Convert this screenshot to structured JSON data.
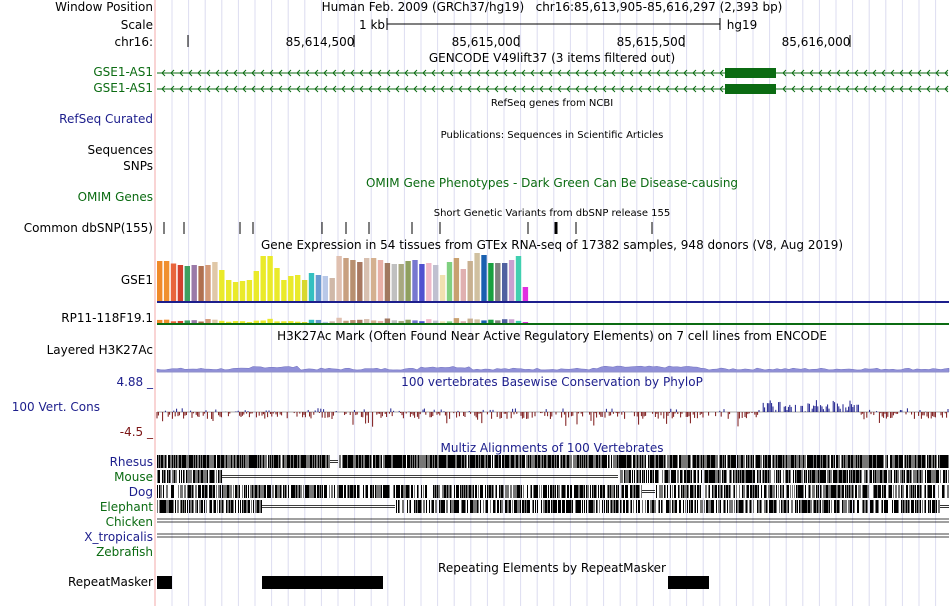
{
  "header": {
    "window_position_label": "Window Position",
    "scale_label": "Scale",
    "chrom_label": "chr16:",
    "assembly": "Human Feb. 2009 (GRCh37/hg19)",
    "position": "chr16:85,613,905-85,616,297 (2,393 bp)",
    "scale_text": "1 kb",
    "assembly_short": "hg19",
    "ruler_ticks": [
      "85,614,500",
      "85,615,000",
      "85,615,500",
      "85,616,000"
    ]
  },
  "colors": {
    "label_blue": "#1c1e8c",
    "label_green": "#0b6b12",
    "gene_green": "#0b6b12",
    "guide_line": "#d7d7f0",
    "left_border": "#f3a8a8",
    "phylop_pos": "#1c1e8c",
    "phylop_neg": "#7a1414"
  },
  "tracks": {
    "gencode": {
      "title": "GENCODE V49lift37 (3 items filtered out)",
      "items": [
        {
          "label": "GSE1-AS1",
          "strand": "minus"
        },
        {
          "label": "GSE1-AS1",
          "strand": "minus"
        }
      ]
    },
    "refseq": {
      "title": "RefSeq genes from NCBI",
      "label": "RefSeq Curated"
    },
    "publications": {
      "title": "Publications: Sequences in Scientific Articles",
      "label_line1": "Sequences",
      "label_line2": "SNPs"
    },
    "omim": {
      "title": "OMIM Gene Phenotypes - Dark Green Can Be Disease-causing",
      "label": "OMIM Genes"
    },
    "dbsnp": {
      "title": "Short Genetic Variants from dbSNP release 155",
      "label": "Common dbSNP(155)"
    },
    "gtex": {
      "title": "Gene Expression in 54 tissues from GTEx RNA-seq of 17382 samples, 948 donors (V8, Aug 2019)",
      "genes": [
        "GSE1",
        "RP11-118F19.1"
      ],
      "tissue_values": [
        0.8,
        0.8,
        0.75,
        0.72,
        0.7,
        0.72,
        0.7,
        0.72,
        0.78,
        0.62,
        0.42,
        0.38,
        0.4,
        0.42,
        0.6,
        0.9,
        0.9,
        0.66,
        0.42,
        0.5,
        0.52,
        0.42,
        0.56,
        0.52,
        0.5,
        0.46,
        0.9,
        0.86,
        0.82,
        0.78,
        0.86,
        0.86,
        0.82,
        0.76,
        0.74,
        0.74,
        0.8,
        0.82,
        0.74,
        0.76,
        0.72,
        0.52,
        0.78,
        0.86,
        0.64,
        0.8,
        0.96,
        0.92,
        0.76,
        0.76,
        0.76,
        0.82,
        0.9,
        0.28
      ],
      "tissue_colors": [
        "#f08a2a",
        "#f0902f",
        "#e8643c",
        "#d2402e",
        "#3fa060",
        "#9a7aa8",
        "#b07050",
        "#d49a78",
        "#e0c8a8",
        "#eaea2a",
        "#eaea2a",
        "#eaea2a",
        "#eaea2a",
        "#eaea2a",
        "#eaea2a",
        "#eaea2a",
        "#eaea2a",
        "#eaea2a",
        "#eaea2a",
        "#eaea2a",
        "#eaea2a",
        "#d8d830",
        "#34c0c0",
        "#6a9ad0",
        "#b8c8e8",
        "#d0b8a8",
        "#e0c0b0",
        "#c8a080",
        "#b89070",
        "#a87860",
        "#d8c0b0",
        "#d4b090",
        "#e8b0a8",
        "#a07860",
        "#c0c0c0",
        "#a8a880",
        "#90a060",
        "#7878d0",
        "#5050d0",
        "#f0b8c8",
        "#c0c0d0",
        "#f0e0b0",
        "#80d080",
        "#c8a070",
        "#e0b0b0",
        "#c8b090",
        "#d0c0a0",
        "#1a60b0",
        "#1aa040",
        "#808080",
        "#5060a0",
        "#c8a0d0",
        "#40d0b0",
        "#e030e0"
      ]
    },
    "h3k27ac": {
      "title": "H3K27Ac Mark (Often Found Near Active Regulatory Elements) on 7 cell lines from ENCODE",
      "label": "Layered H3K27Ac"
    },
    "phylop": {
      "title": "100 vertebrates Basewise Conservation by PhyloP",
      "label": "100 Vert. Cons",
      "max_label": "4.88 _",
      "min_label": "-4.5 _"
    },
    "multiz": {
      "title": "Multiz Alignments of 100 Vertebrates",
      "species": [
        "Rhesus",
        "Mouse",
        "Dog",
        "Elephant",
        "Chicken",
        "X_tropicalis",
        "Zebrafish"
      ]
    },
    "repeatmasker": {
      "title": "Repeating Elements by RepeatMasker",
      "label": "RepeatMasker"
    }
  }
}
